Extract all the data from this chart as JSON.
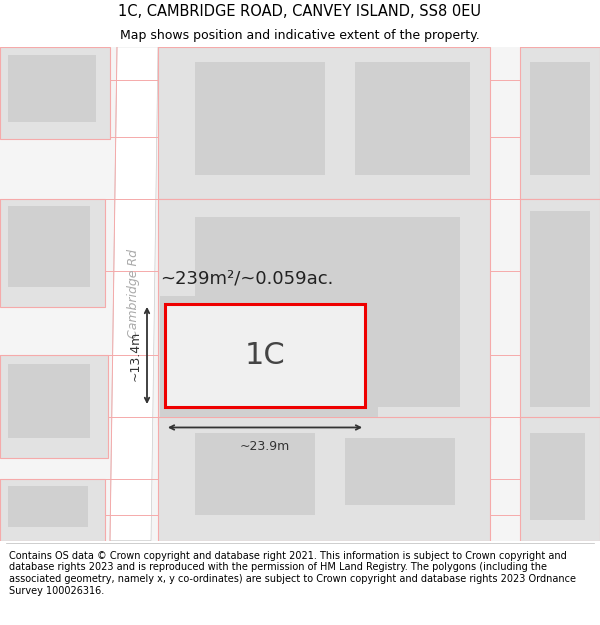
{
  "title_line1": "1C, CAMBRIDGE ROAD, CANVEY ISLAND, SS8 0EU",
  "title_line2": "Map shows position and indicative extent of the property.",
  "footer_text": "Contains OS data © Crown copyright and database right 2021. This information is subject to Crown copyright and database rights 2023 and is reproduced with the permission of HM Land Registry. The polygons (including the associated geometry, namely x, y co-ordinates) are subject to Crown copyright and database rights 2023 Ordnance Survey 100026316.",
  "bg_color": "#ffffff",
  "map_bg": "#f5f5f5",
  "road_color": "#ffffff",
  "block_fill": "#e2e2e2",
  "block_inner_fill": "#d0d0d0",
  "outline_color": "#f5aaaa",
  "highlight_color": "#ee0000",
  "dim_color": "#333333",
  "road_label": "Cambridge Rd",
  "property_label": "1C",
  "area_label": "~239m²/~0.059ac.",
  "width_label": "~23.9m",
  "height_label": "~13.4m",
  "title_fontsize": 10.5,
  "subtitle_fontsize": 9,
  "footer_fontsize": 7,
  "area_fontsize": 13,
  "dim_fontsize": 9,
  "prop_label_fontsize": 22,
  "road_label_fontsize": 9
}
